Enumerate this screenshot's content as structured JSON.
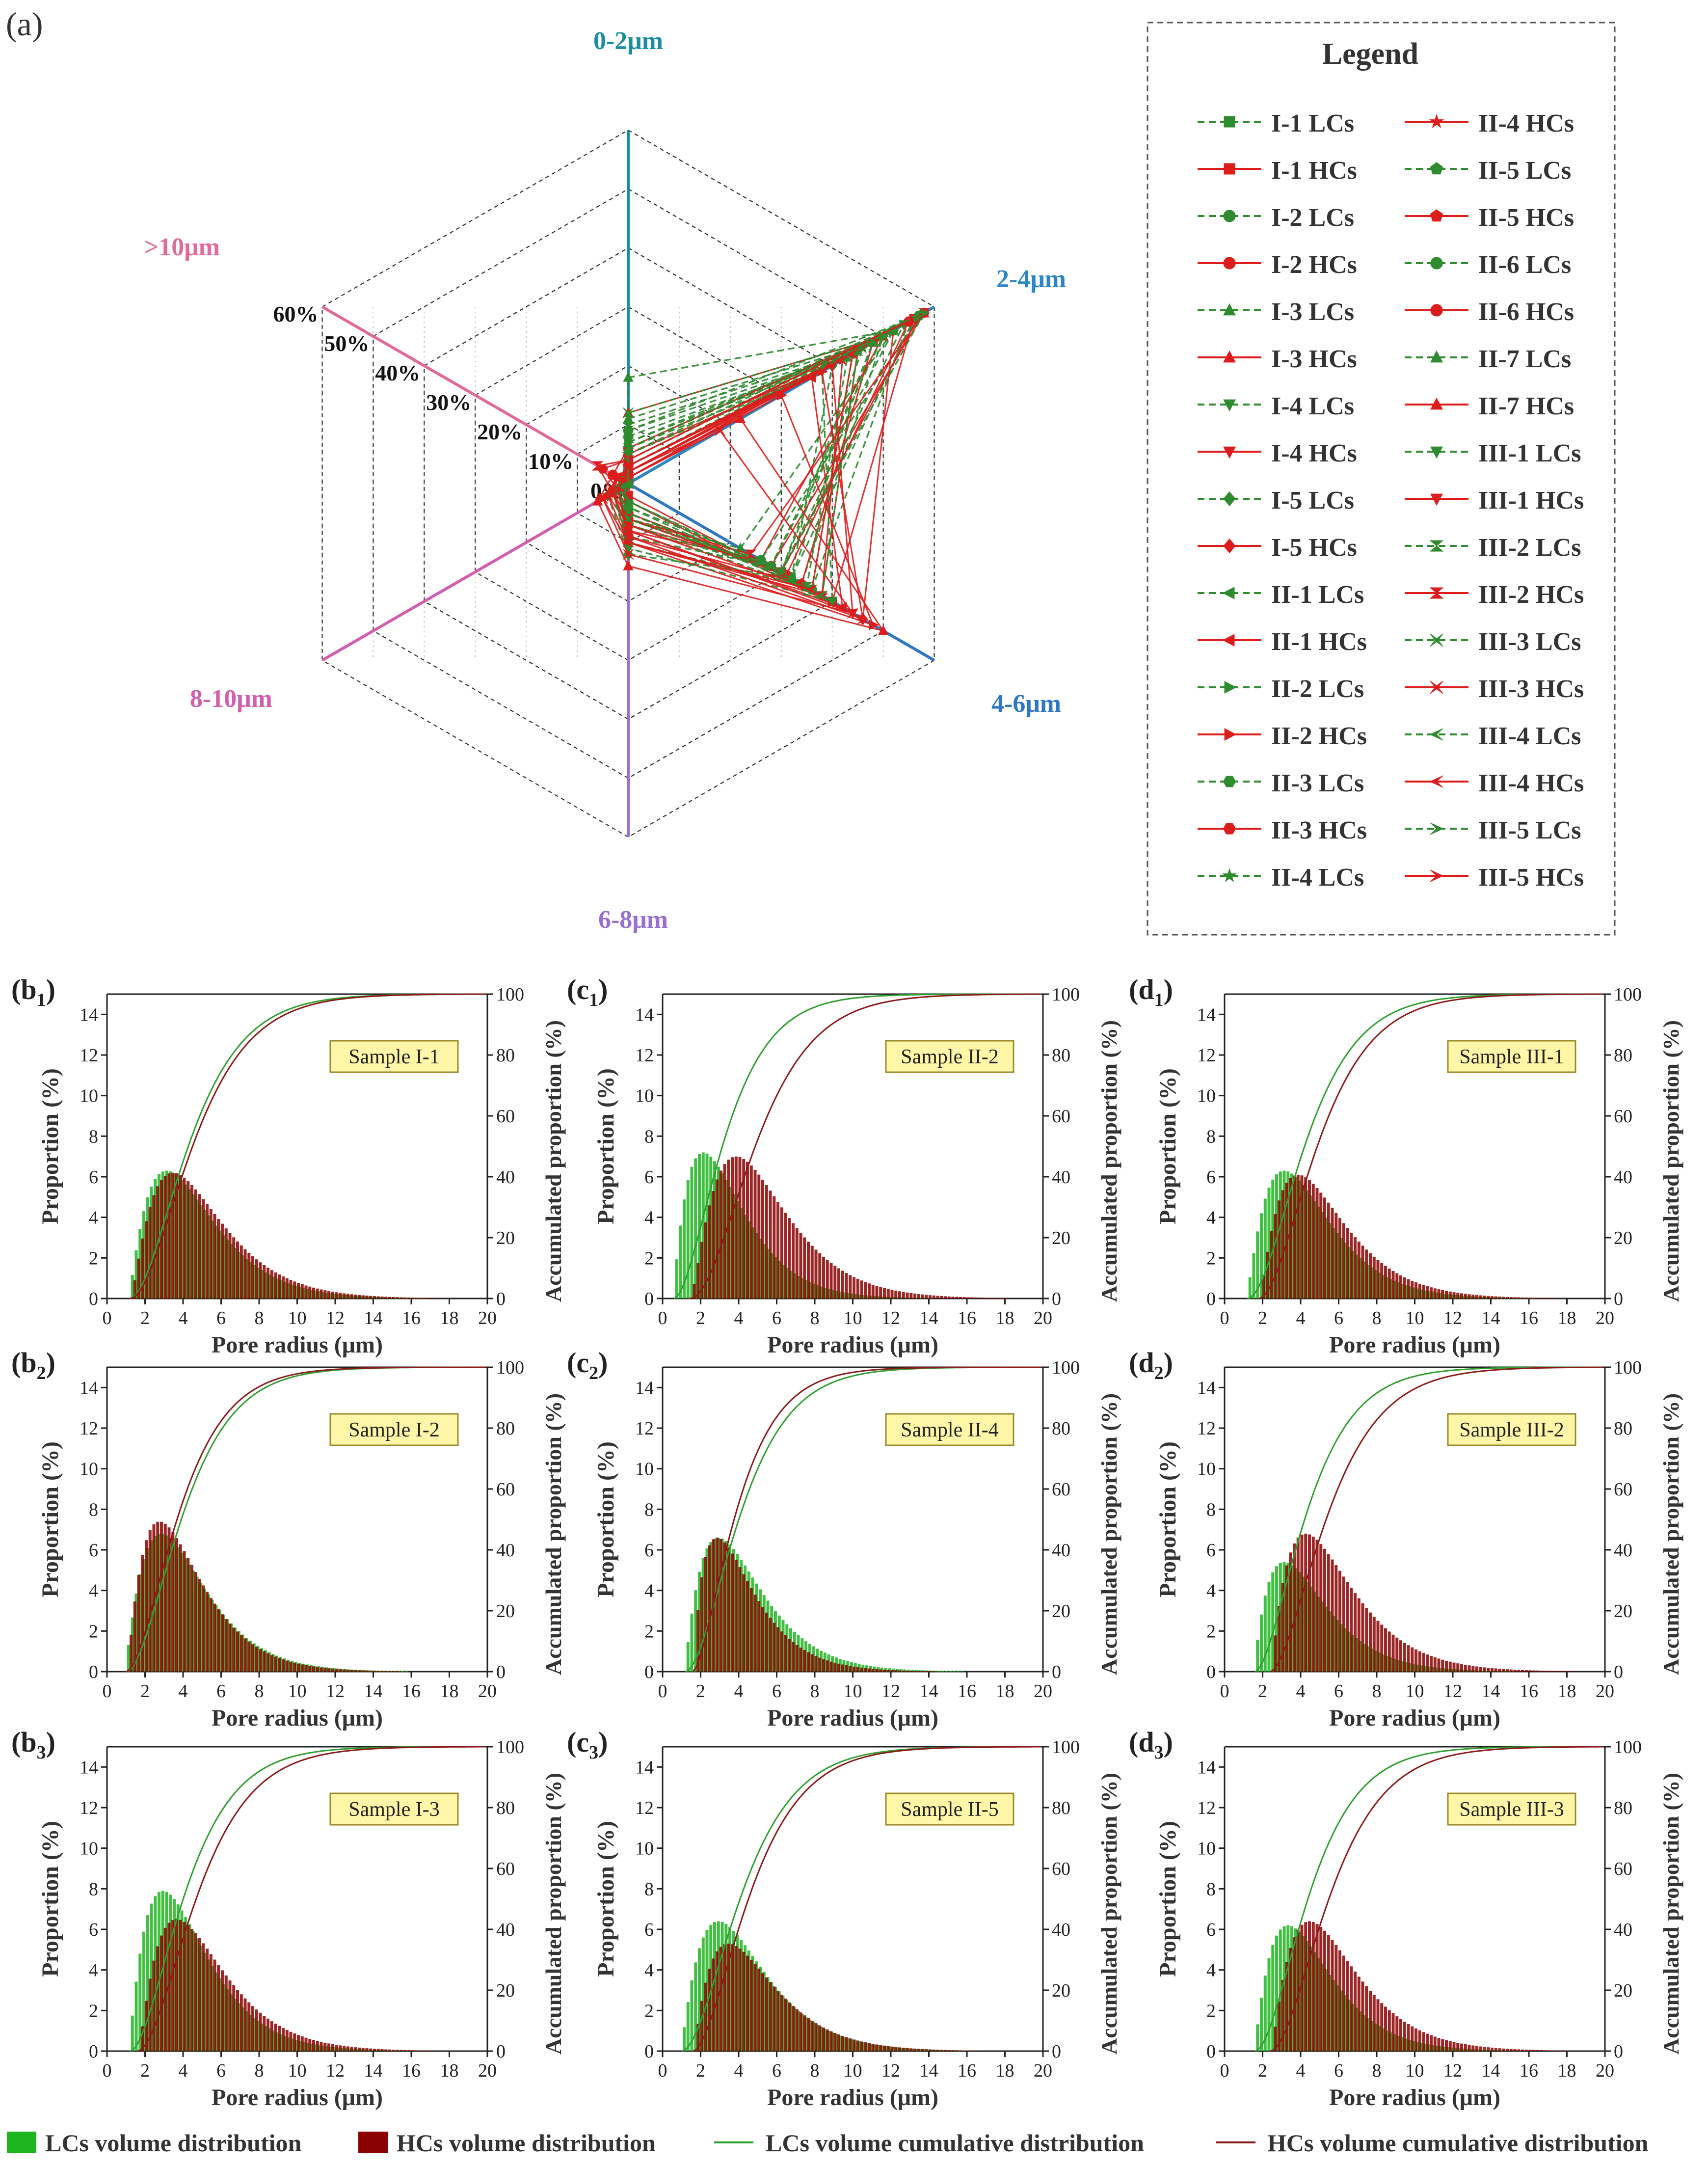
{
  "radar": {
    "panel_label": "(a)",
    "axes": [
      "0-2μm",
      "2-4μm",
      "4-6μm",
      "6-8μm",
      "8-10μm",
      ">10μm"
    ],
    "axis_colors": [
      "#1a8fa0",
      "#2b86c5",
      "#2f77c2",
      "#9a6fd0",
      "#d25fae",
      "#e06a9a"
    ],
    "rlabels": [
      "0%",
      "10%",
      "20%",
      "30%",
      "40%",
      "50%",
      "60%"
    ],
    "rmax": 60,
    "legend_title": "Legend",
    "lcs_color": "#2e8b2e",
    "hcs_color": "#dd1c1c",
    "legend_entries": [
      {
        "label": "I-1 LCs",
        "type": "LCs",
        "marker": "square"
      },
      {
        "label": "I-1 HCs",
        "type": "HCs",
        "marker": "square"
      },
      {
        "label": "I-2 LCs",
        "type": "LCs",
        "marker": "circle"
      },
      {
        "label": "I-2 HCs",
        "type": "HCs",
        "marker": "circle"
      },
      {
        "label": "I-3 LCs",
        "type": "LCs",
        "marker": "triangle-up"
      },
      {
        "label": "I-3 HCs",
        "type": "HCs",
        "marker": "triangle-up"
      },
      {
        "label": "I-4 LCs",
        "type": "LCs",
        "marker": "triangle-down"
      },
      {
        "label": "I-4 HCs",
        "type": "HCs",
        "marker": "triangle-down"
      },
      {
        "label": "I-5 LCs",
        "type": "LCs",
        "marker": "diamond"
      },
      {
        "label": "I-5 HCs",
        "type": "HCs",
        "marker": "diamond"
      },
      {
        "label": "II-1 LCs",
        "type": "LCs",
        "marker": "triangle-left"
      },
      {
        "label": "II-1 HCs",
        "type": "HCs",
        "marker": "triangle-left"
      },
      {
        "label": "II-2 LCs",
        "type": "LCs",
        "marker": "triangle-right"
      },
      {
        "label": "II-2 HCs",
        "type": "HCs",
        "marker": "triangle-right"
      },
      {
        "label": "II-3 LCs",
        "type": "LCs",
        "marker": "hexagon"
      },
      {
        "label": "II-3 HCs",
        "type": "HCs",
        "marker": "hexagon"
      },
      {
        "label": "II-4 LCs",
        "type": "LCs",
        "marker": "star"
      },
      {
        "label": "II-4 HCs",
        "type": "HCs",
        "marker": "star"
      },
      {
        "label": "II-5 LCs",
        "type": "LCs",
        "marker": "pentagon"
      },
      {
        "label": "II-5 HCs",
        "type": "HCs",
        "marker": "pentagon"
      },
      {
        "label": "II-6 LCs",
        "type": "LCs",
        "marker": "circle"
      },
      {
        "label": "II-6 HCs",
        "type": "HCs",
        "marker": "circle"
      },
      {
        "label": "II-7 LCs",
        "type": "LCs",
        "marker": "triangle-up"
      },
      {
        "label": "II-7 HCs",
        "type": "HCs",
        "marker": "triangle-up"
      },
      {
        "label": "III-1 LCs",
        "type": "LCs",
        "marker": "triangle-down"
      },
      {
        "label": "III-1 HCs",
        "type": "HCs",
        "marker": "triangle-down"
      },
      {
        "label": "III-2 LCs",
        "type": "LCs",
        "marker": "x-tri"
      },
      {
        "label": "III-2 HCs",
        "type": "HCs",
        "marker": "x-tri"
      },
      {
        "label": "III-3 LCs",
        "type": "LCs",
        "marker": "x-diamond"
      },
      {
        "label": "III-3 HCs",
        "type": "HCs",
        "marker": "x-diamond"
      },
      {
        "label": "III-4 LCs",
        "type": "LCs",
        "marker": "x-left"
      },
      {
        "label": "III-4 HCs",
        "type": "HCs",
        "marker": "x-left"
      },
      {
        "label": "III-5 LCs",
        "type": "LCs",
        "marker": "x-right"
      },
      {
        "label": "III-5 HCs",
        "type": "HCs",
        "marker": "x-right"
      }
    ]
  },
  "bottom_legend": {
    "lcs_bar": "LCs volume distribution",
    "hcs_bar": "HCs volume distribution",
    "lcs_line": "LCs volume cumulative distribution",
    "hcs_line": "HCs volume cumulative distribution"
  },
  "chart_data": [
    {
      "type": "radar",
      "title": "(a)",
      "axes": [
        "0-2μm",
        "2-4μm",
        "4-6μm",
        "6-8μm",
        "8-10μm",
        ">10μm"
      ],
      "rlim": [
        0,
        60
      ],
      "series": [
        {
          "name": "I-1 LCs",
          "values": [
            2,
            48,
            30,
            6,
            1,
            0
          ]
        },
        {
          "name": "I-1 HCs",
          "values": [
            1,
            56,
            40,
            2,
            0.5,
            0
          ]
        },
        {
          "name": "I-2 LCs",
          "values": [
            3,
            55,
            36,
            5,
            1,
            0
          ]
        },
        {
          "name": "I-2 HCs",
          "values": [
            2,
            58,
            28,
            7,
            2,
            1
          ]
        },
        {
          "name": "I-3 LCs",
          "values": [
            18,
            52,
            22,
            6,
            1,
            0
          ]
        },
        {
          "name": "I-3 HCs",
          "values": [
            12,
            50,
            26,
            8,
            3,
            1
          ]
        },
        {
          "name": "I-4 LCs",
          "values": [
            4,
            54,
            30,
            5,
            2,
            0
          ]
        },
        {
          "name": "I-4 HCs",
          "values": [
            3,
            45,
            38,
            10,
            3,
            1
          ]
        },
        {
          "name": "I-5 LCs",
          "values": [
            6,
            40,
            32,
            12,
            4,
            1
          ]
        },
        {
          "name": "I-5 HCs",
          "values": [
            1,
            52,
            46,
            3,
            1,
            0
          ]
        },
        {
          "name": "II-1 LCs",
          "values": [
            5,
            56,
            32,
            6,
            1,
            0
          ]
        },
        {
          "name": "II-1 HCs",
          "values": [
            2,
            36,
            42,
            8,
            3,
            2
          ]
        },
        {
          "name": "II-2 LCs",
          "values": [
            7,
            50,
            34,
            3,
            2,
            0
          ]
        },
        {
          "name": "II-2 HCs",
          "values": [
            1,
            30,
            48,
            10,
            5,
            2
          ]
        },
        {
          "name": "II-3 LCs",
          "values": [
            8,
            44,
            36,
            7,
            2,
            0
          ]
        },
        {
          "name": "II-3 HCs",
          "values": [
            4,
            57,
            30,
            5,
            2,
            5
          ]
        },
        {
          "name": "II-4 LCs",
          "values": [
            10,
            46,
            30,
            7,
            1,
            0
          ]
        },
        {
          "name": "II-4 HCs",
          "values": [
            5,
            42,
            38,
            7,
            4,
            1
          ]
        },
        {
          "name": "II-5 LCs",
          "values": [
            6,
            52,
            28,
            9,
            3,
            0
          ]
        },
        {
          "name": "II-5 HCs",
          "values": [
            3,
            48,
            34,
            9,
            2,
            1
          ]
        },
        {
          "name": "II-6 LCs",
          "values": [
            9,
            57,
            26,
            4,
            1,
            0
          ]
        },
        {
          "name": "II-6 HCs",
          "values": [
            6,
            55,
            31,
            6,
            1,
            3
          ]
        },
        {
          "name": "II-7 LCs",
          "values": [
            11,
            48,
            32,
            5,
            2,
            1
          ]
        },
        {
          "name": "II-7 HCs",
          "values": [
            2,
            22,
            50,
            14,
            6,
            3
          ]
        },
        {
          "name": "III-1 LCs",
          "values": [
            5,
            38,
            40,
            11,
            3,
            0
          ]
        },
        {
          "name": "III-1 HCs",
          "values": [
            3,
            40,
            44,
            8,
            3,
            1
          ]
        },
        {
          "name": "III-2 LCs",
          "values": [
            7,
            43,
            35,
            10,
            2,
            1
          ]
        },
        {
          "name": "III-2 HCs",
          "values": [
            4,
            58,
            24,
            6,
            3,
            6
          ]
        },
        {
          "name": "III-3 LCs",
          "values": [
            12,
            50,
            28,
            6,
            2,
            0
          ]
        },
        {
          "name": "III-3 HCs",
          "values": [
            1,
            18,
            44,
            12,
            5,
            2
          ]
        },
        {
          "name": "III-4 LCs",
          "values": [
            9,
            45,
            38,
            4,
            1,
            0
          ]
        },
        {
          "name": "III-4 HCs",
          "values": [
            2,
            44,
            36,
            10,
            4,
            2
          ]
        },
        {
          "name": "III-5 LCs",
          "values": [
            6,
            58,
            30,
            3,
            1,
            0
          ]
        },
        {
          "name": "III-5 HCs",
          "values": [
            3,
            38,
            46,
            9,
            2,
            1
          ]
        }
      ]
    },
    {
      "type": "bar",
      "panel": "(b1)",
      "sample": "Sample I-1",
      "xlabel": "Pore radius (μm)",
      "ylabel": "Proportion (%)",
      "y2label": "Accumulated proportion (%)",
      "xlim": [
        0,
        20
      ],
      "ylim": [
        0,
        15
      ],
      "y2lim": [
        0,
        100
      ],
      "series": [
        {
          "name": "LCs",
          "start": 1.2,
          "peak_x": 3.2,
          "peak": 6.3,
          "span": 8.5
        },
        {
          "name": "HCs",
          "start": 1.2,
          "peak_x": 3.4,
          "peak": 6.2,
          "span": 8.7
        }
      ]
    },
    {
      "type": "bar",
      "panel": "(c1)",
      "sample": "Sample II-2",
      "xlabel": "Pore radius (μm)",
      "ylabel": "Proportion (%)",
      "y2label": "Accumulated proportion (%)",
      "xlim": [
        0,
        20
      ],
      "ylim": [
        0,
        15
      ],
      "y2lim": [
        0,
        100
      ],
      "series": [
        {
          "name": "LCs",
          "start": 0.6,
          "peak_x": 2.2,
          "peak": 7.2,
          "span": 7.5
        },
        {
          "name": "HCs",
          "start": 1.4,
          "peak_x": 3.8,
          "peak": 7.0,
          "span": 8.5
        }
      ]
    },
    {
      "type": "bar",
      "panel": "(d1)",
      "sample": "Sample III-1",
      "xlabel": "Pore radius (μm)",
      "ylabel": "Proportion (%)",
      "y2label": "Accumulated proportion (%)",
      "xlim": [
        0,
        20
      ],
      "ylim": [
        0,
        15
      ],
      "y2lim": [
        0,
        100
      ],
      "series": [
        {
          "name": "LCs",
          "start": 1.2,
          "peak_x": 3.2,
          "peak": 6.3,
          "span": 8.0
        },
        {
          "name": "HCs",
          "start": 1.8,
          "peak_x": 3.8,
          "peak": 6.1,
          "span": 8.5
        }
      ]
    },
    {
      "type": "bar",
      "panel": "(b2)",
      "sample": "Sample I-2",
      "xlabel": "Pore radius (μm)",
      "ylabel": "Proportion (%)",
      "y2label": "Accumulated proportion (%)",
      "xlim": [
        0,
        20
      ],
      "ylim": [
        0,
        15
      ],
      "y2lim": [
        0,
        100
      ],
      "series": [
        {
          "name": "LCs",
          "start": 1.0,
          "peak_x": 2.9,
          "peak": 6.8,
          "span": 8.0
        },
        {
          "name": "HCs",
          "start": 1.0,
          "peak_x": 2.7,
          "peak": 7.4,
          "span": 7.8
        }
      ]
    },
    {
      "type": "bar",
      "panel": "(c2)",
      "sample": "Sample II-4",
      "xlabel": "Pore radius (μm)",
      "ylabel": "Proportion (%)",
      "y2label": "Accumulated proportion (%)",
      "xlim": [
        0,
        20
      ],
      "ylim": [
        0,
        15
      ],
      "y2lim": [
        0,
        100
      ],
      "series": [
        {
          "name": "LCs",
          "start": 1.2,
          "peak_x": 3.0,
          "peak": 6.6,
          "span": 8.0
        },
        {
          "name": "HCs",
          "start": 1.6,
          "peak_x": 2.8,
          "peak": 6.6,
          "span": 7.6
        }
      ]
    },
    {
      "type": "bar",
      "panel": "(d2)",
      "sample": "Sample III-2",
      "xlabel": "Pore radius (μm)",
      "ylabel": "Proportion (%)",
      "y2label": "Accumulated proportion (%)",
      "xlim": [
        0,
        20
      ],
      "ylim": [
        0,
        15
      ],
      "y2lim": [
        0,
        100
      ],
      "series": [
        {
          "name": "LCs",
          "start": 1.6,
          "peak_x": 3.2,
          "peak": 5.4,
          "span": 8.0
        },
        {
          "name": "HCs",
          "start": 2.4,
          "peak_x": 4.2,
          "peak": 6.8,
          "span": 9.0
        }
      ]
    },
    {
      "type": "bar",
      "panel": "(b3)",
      "sample": "Sample I-3",
      "xlabel": "Pore radius (μm)",
      "ylabel": "Proportion (%)",
      "y2label": "Accumulated proportion (%)",
      "xlim": [
        0,
        20
      ],
      "ylim": [
        0,
        15
      ],
      "y2lim": [
        0,
        100
      ],
      "series": [
        {
          "name": "LCs",
          "start": 1.2,
          "peak_x": 3.0,
          "peak": 7.9,
          "span": 8.0
        },
        {
          "name": "HCs",
          "start": 1.6,
          "peak_x": 3.6,
          "peak": 6.5,
          "span": 8.6
        }
      ]
    },
    {
      "type": "bar",
      "panel": "(c3)",
      "sample": "Sample II-5",
      "xlabel": "Pore radius (μm)",
      "ylabel": "Proportion (%)",
      "y2label": "Accumulated proportion (%)",
      "xlim": [
        0,
        20
      ],
      "ylim": [
        0,
        15
      ],
      "y2lim": [
        0,
        100
      ],
      "series": [
        {
          "name": "LCs",
          "start": 1.0,
          "peak_x": 3.0,
          "peak": 6.4,
          "span": 8.5
        },
        {
          "name": "HCs",
          "start": 1.6,
          "peak_x": 3.4,
          "peak": 5.3,
          "span": 8.8
        }
      ]
    },
    {
      "type": "bar",
      "panel": "(d3)",
      "sample": "Sample III-3",
      "xlabel": "Pore radius (μm)",
      "ylabel": "Proportion (%)",
      "y2label": "Accumulated proportion (%)",
      "xlim": [
        0,
        20
      ],
      "ylim": [
        0,
        15
      ],
      "y2lim": [
        0,
        100
      ],
      "series": [
        {
          "name": "LCs",
          "start": 1.6,
          "peak_x": 3.4,
          "peak": 6.2,
          "span": 7.8
        },
        {
          "name": "HCs",
          "start": 2.4,
          "peak_x": 4.4,
          "peak": 6.4,
          "span": 8.6
        }
      ]
    }
  ],
  "small_axes": {
    "xticks": [
      "0",
      "2",
      "4",
      "6",
      "8",
      "10",
      "12",
      "14",
      "16",
      "18",
      "20"
    ],
    "yticks": [
      "0",
      "2",
      "4",
      "6",
      "8",
      "10",
      "12",
      "14"
    ],
    "y2ticks": [
      "0",
      "20",
      "40",
      "60",
      "80",
      "100"
    ]
  },
  "panel_labels": [
    {
      "base": "(b",
      "sub": "1",
      "end": ")"
    },
    {
      "base": "(c",
      "sub": "1",
      "end": ")"
    },
    {
      "base": "(d",
      "sub": "1",
      "end": ")"
    },
    {
      "base": "(b",
      "sub": "2",
      "end": ")"
    },
    {
      "base": "(c",
      "sub": "2",
      "end": ")"
    },
    {
      "base": "(d",
      "sub": "2",
      "end": ")"
    },
    {
      "base": "(b",
      "sub": "3",
      "end": ")"
    },
    {
      "base": "(c",
      "sub": "3",
      "end": ")"
    },
    {
      "base": "(d",
      "sub": "3",
      "end": ")"
    }
  ],
  "colors": {
    "lcs_bar": "#1fb51f",
    "hcs_bar": "#8b0000",
    "lcs_line": "#2fa02f",
    "hcs_line": "#8b1a1a",
    "sample_box_fill": "#fff6a8",
    "sample_box_stroke": "#9c8a2a"
  }
}
